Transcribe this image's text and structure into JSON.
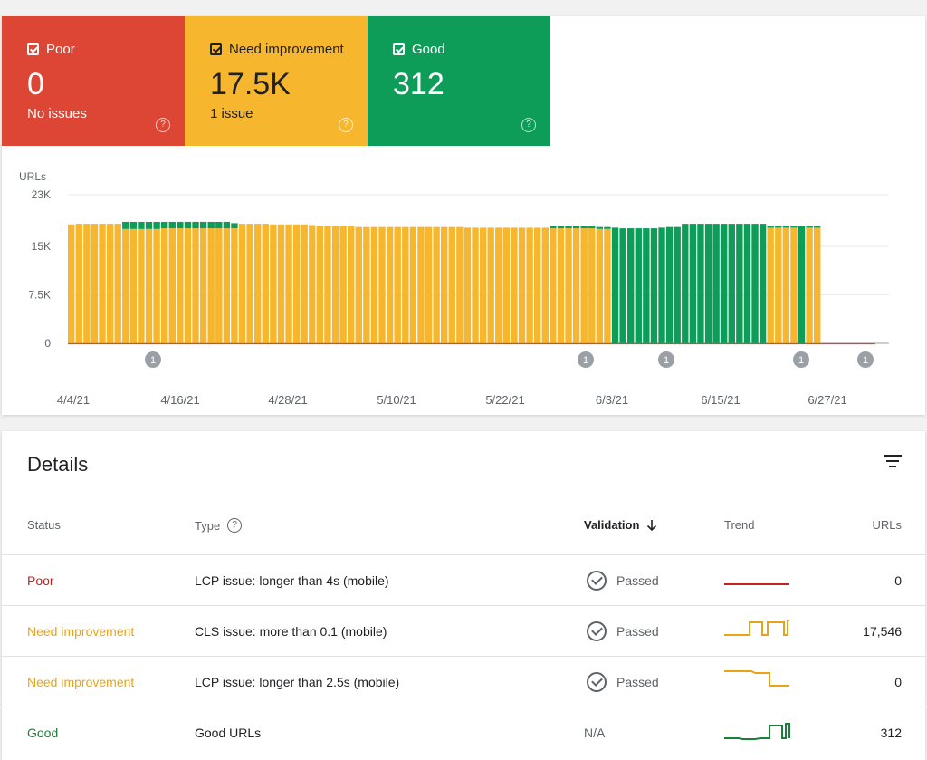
{
  "summary": {
    "poor": {
      "label": "Poor",
      "value": "0",
      "sub": "No issues",
      "color": "#dd4535"
    },
    "need_improvement": {
      "label": "Need improvement",
      "value": "17.5K",
      "sub": "1 issue",
      "color": "#f6b62e"
    },
    "good": {
      "label": "Good",
      "value": "312",
      "color": "#0d9d58"
    }
  },
  "chart_data": {
    "type": "bar",
    "stacked": true,
    "ylabel": "URLs",
    "yticks": [
      "0",
      "7.5K",
      "15K",
      "23K"
    ],
    "ylim": [
      0,
      23000
    ],
    "xticks": [
      "4/4/21",
      "4/16/21",
      "4/28/21",
      "5/10/21",
      "5/22/21",
      "6/3/21",
      "6/15/21",
      "6/27/21"
    ],
    "start_date": "4/4/21",
    "annotations": [
      {
        "date": "4/13/21",
        "label": "1"
      },
      {
        "date": "6/1/21",
        "label": "1"
      },
      {
        "date": "6/10/21",
        "label": "1"
      },
      {
        "date": "6/25/21",
        "label": "1"
      },
      {
        "date": "7/2/21",
        "label": "1"
      }
    ],
    "series": [
      {
        "name": "Need improvement",
        "color": "#f6b62e",
        "values": [
          18400,
          18500,
          18500,
          18500,
          18500,
          18500,
          18500,
          17700,
          17700,
          17700,
          17700,
          17700,
          17800,
          17800,
          17800,
          17800,
          17800,
          17800,
          17800,
          17800,
          17800,
          17800,
          18500,
          18500,
          18500,
          18500,
          18400,
          18400,
          18400,
          18400,
          18400,
          18300,
          18200,
          18100,
          18100,
          18100,
          18100,
          18000,
          18000,
          18000,
          18000,
          18000,
          18000,
          18000,
          18000,
          18000,
          18000,
          18000,
          18000,
          18000,
          18000,
          17900,
          17900,
          17900,
          17900,
          17900,
          17900,
          17900,
          17900,
          17900,
          17900,
          17900,
          17800,
          17800,
          17800,
          17800,
          17800,
          17800,
          17700,
          17700,
          0,
          0,
          0,
          0,
          0,
          0,
          0,
          0,
          0,
          0,
          0,
          0,
          0,
          0,
          0,
          0,
          0,
          0,
          0,
          0,
          17900,
          17900,
          17900,
          17900,
          0,
          17900,
          17900
        ]
      },
      {
        "name": "Good",
        "color": "#0d9d58",
        "values": [
          0,
          0,
          0,
          0,
          0,
          0,
          0,
          1100,
          1100,
          1100,
          1100,
          1100,
          1000,
          1000,
          1000,
          1000,
          1000,
          1000,
          1000,
          1000,
          1000,
          800,
          0,
          0,
          0,
          0,
          0,
          0,
          0,
          0,
          0,
          0,
          0,
          0,
          0,
          0,
          0,
          0,
          0,
          0,
          0,
          0,
          0,
          0,
          0,
          0,
          0,
          0,
          0,
          0,
          0,
          0,
          0,
          0,
          0,
          0,
          0,
          0,
          0,
          0,
          0,
          0,
          300,
          300,
          300,
          300,
          300,
          300,
          300,
          300,
          17900,
          17800,
          17800,
          17800,
          17800,
          17800,
          17900,
          18000,
          18000,
          18500,
          18500,
          18500,
          18500,
          18500,
          18500,
          18500,
          18500,
          18500,
          18500,
          18500,
          300,
          300,
          300,
          300,
          18200,
          300,
          300
        ]
      },
      {
        "name": "Poor",
        "color": "#dd4535",
        "values": []
      }
    ]
  },
  "details": {
    "title": "Details",
    "columns": {
      "status": "Status",
      "type": "Type",
      "validation": "Validation",
      "trend": "Trend",
      "urls": "URLs"
    },
    "rows": [
      {
        "status": "Poor",
        "type": "LCP issue: longer than 4s (mobile)",
        "validation": "Passed",
        "urls": "0"
      },
      {
        "status": "Need improvement",
        "type": "CLS issue: more than 0.1 (mobile)",
        "validation": "Passed",
        "urls": "17,546"
      },
      {
        "status": "Need improvement",
        "type": "LCP issue: longer than 2.5s (mobile)",
        "validation": "Passed",
        "urls": "0"
      },
      {
        "status": "Good",
        "type": "Good URLs",
        "validation": "N/A",
        "urls": "312"
      }
    ]
  },
  "icons": {
    "checkbox": "checkbox-checked-icon",
    "help": "help-circle-icon",
    "filter": "filter-icon",
    "sort": "arrow-down-icon",
    "passed": "check-circle-icon"
  }
}
